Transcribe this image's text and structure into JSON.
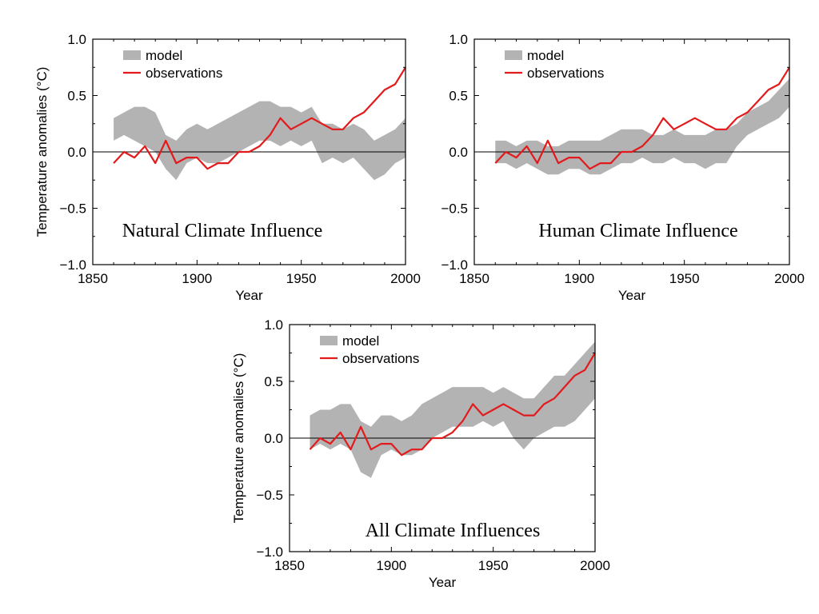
{
  "figure": {
    "legend": {
      "model_label": "model",
      "observations_label": "observations"
    },
    "colors": {
      "model": "#b3b3b3",
      "observations": "#e31a1c",
      "axis": "#000000"
    }
  },
  "chart_data": [
    {
      "type": "line",
      "title": "Natural Climate Influence",
      "xlabel": "Year",
      "ylabel": "Temperature anomalies (°C)",
      "xlim": [
        1850,
        2000
      ],
      "ylim": [
        -1.0,
        1.0
      ],
      "xticks": [
        "1850",
        "1900",
        "1950",
        "2000"
      ],
      "yticks": [
        "−1.0",
        "−0.5",
        "0.0",
        "0.5",
        "1.0"
      ],
      "legend_position": "top-left",
      "grid": false,
      "x": [
        1860,
        1865,
        1870,
        1875,
        1880,
        1885,
        1890,
        1895,
        1900,
        1905,
        1910,
        1915,
        1920,
        1925,
        1930,
        1935,
        1940,
        1945,
        1950,
        1955,
        1960,
        1965,
        1970,
        1975,
        1980,
        1985,
        1990,
        1995,
        2000
      ],
      "series": [
        {
          "name": "model",
          "kind": "band",
          "lower": [
            0.1,
            0.15,
            0.1,
            0.05,
            0.0,
            -0.15,
            -0.25,
            -0.1,
            -0.05,
            -0.1,
            -0.1,
            -0.05,
            0.0,
            0.05,
            0.1,
            0.1,
            0.05,
            0.1,
            0.05,
            0.1,
            -0.1,
            -0.05,
            -0.1,
            -0.05,
            -0.15,
            -0.25,
            -0.2,
            -0.1,
            -0.05
          ],
          "upper": [
            0.3,
            0.35,
            0.4,
            0.4,
            0.35,
            0.15,
            0.1,
            0.2,
            0.25,
            0.2,
            0.25,
            0.3,
            0.35,
            0.4,
            0.45,
            0.45,
            0.4,
            0.4,
            0.35,
            0.4,
            0.25,
            0.25,
            0.2,
            0.25,
            0.2,
            0.1,
            0.15,
            0.2,
            0.3
          ]
        },
        {
          "name": "observations",
          "kind": "line",
          "values": [
            -0.1,
            0.0,
            -0.05,
            0.05,
            -0.1,
            0.1,
            -0.1,
            -0.05,
            -0.05,
            -0.15,
            -0.1,
            -0.1,
            0.0,
            0.0,
            0.05,
            0.15,
            0.3,
            0.2,
            0.25,
            0.3,
            0.25,
            0.2,
            0.2,
            0.3,
            0.35,
            0.45,
            0.55,
            0.6,
            0.75
          ]
        }
      ]
    },
    {
      "type": "line",
      "title": "Human Climate Influence",
      "xlabel": "Year",
      "ylabel": "",
      "xlim": [
        1850,
        2000
      ],
      "ylim": [
        -1.0,
        1.0
      ],
      "xticks": [
        "1850",
        "1900",
        "1950",
        "2000"
      ],
      "yticks": [
        "−1.0",
        "−0.5",
        "0.0",
        "0.5",
        "1.0"
      ],
      "legend_position": "top-left",
      "grid": false,
      "x": [
        1860,
        1865,
        1870,
        1875,
        1880,
        1885,
        1890,
        1895,
        1900,
        1905,
        1910,
        1915,
        1920,
        1925,
        1930,
        1935,
        1940,
        1945,
        1950,
        1955,
        1960,
        1965,
        1970,
        1975,
        1980,
        1985,
        1990,
        1995,
        2000
      ],
      "series": [
        {
          "name": "model",
          "kind": "band",
          "lower": [
            -0.1,
            -0.1,
            -0.15,
            -0.1,
            -0.15,
            -0.2,
            -0.2,
            -0.15,
            -0.15,
            -0.2,
            -0.2,
            -0.15,
            -0.1,
            -0.1,
            -0.05,
            -0.1,
            -0.1,
            -0.05,
            -0.1,
            -0.1,
            -0.15,
            -0.1,
            -0.1,
            0.05,
            0.15,
            0.2,
            0.25,
            0.3,
            0.4
          ],
          "upper": [
            0.1,
            0.1,
            0.05,
            0.1,
            0.1,
            0.05,
            0.05,
            0.1,
            0.1,
            0.1,
            0.1,
            0.15,
            0.2,
            0.2,
            0.2,
            0.15,
            0.15,
            0.2,
            0.15,
            0.15,
            0.15,
            0.2,
            0.2,
            0.25,
            0.35,
            0.4,
            0.45,
            0.55,
            0.65
          ]
        },
        {
          "name": "observations",
          "kind": "line",
          "values": [
            -0.1,
            0.0,
            -0.05,
            0.05,
            -0.1,
            0.1,
            -0.1,
            -0.05,
            -0.05,
            -0.15,
            -0.1,
            -0.1,
            0.0,
            0.0,
            0.05,
            0.15,
            0.3,
            0.2,
            0.25,
            0.3,
            0.25,
            0.2,
            0.2,
            0.3,
            0.35,
            0.45,
            0.55,
            0.6,
            0.75
          ]
        }
      ]
    },
    {
      "type": "line",
      "title": "All Climate Influences",
      "xlabel": "Year",
      "ylabel": "Temperature anomalies (°C)",
      "xlim": [
        1850,
        2000
      ],
      "ylim": [
        -1.0,
        1.0
      ],
      "xticks": [
        "1850",
        "1900",
        "1950",
        "2000"
      ],
      "yticks": [
        "−1.0",
        "−0.5",
        "0.0",
        "0.5",
        "1.0"
      ],
      "legend_position": "top-left",
      "grid": false,
      "x": [
        1860,
        1865,
        1870,
        1875,
        1880,
        1885,
        1890,
        1895,
        1900,
        1905,
        1910,
        1915,
        1920,
        1925,
        1930,
        1935,
        1940,
        1945,
        1950,
        1955,
        1960,
        1965,
        1970,
        1975,
        1980,
        1985,
        1990,
        1995,
        2000
      ],
      "series": [
        {
          "name": "model",
          "kind": "band",
          "lower": [
            -0.1,
            -0.05,
            -0.1,
            -0.05,
            -0.1,
            -0.3,
            -0.35,
            -0.15,
            -0.1,
            -0.15,
            -0.15,
            -0.1,
            0.0,
            0.05,
            0.1,
            0.1,
            0.1,
            0.15,
            0.1,
            0.15,
            0.0,
            -0.1,
            0.0,
            0.05,
            0.1,
            0.1,
            0.15,
            0.25,
            0.35
          ],
          "upper": [
            0.2,
            0.25,
            0.25,
            0.3,
            0.3,
            0.15,
            0.1,
            0.2,
            0.2,
            0.15,
            0.2,
            0.3,
            0.35,
            0.4,
            0.45,
            0.45,
            0.45,
            0.45,
            0.4,
            0.45,
            0.4,
            0.35,
            0.35,
            0.45,
            0.55,
            0.55,
            0.65,
            0.75,
            0.85
          ]
        },
        {
          "name": "observations",
          "kind": "line",
          "values": [
            -0.1,
            0.0,
            -0.05,
            0.05,
            -0.1,
            0.1,
            -0.1,
            -0.05,
            -0.05,
            -0.15,
            -0.1,
            -0.1,
            0.0,
            0.0,
            0.05,
            0.15,
            0.3,
            0.2,
            0.25,
            0.3,
            0.25,
            0.2,
            0.2,
            0.3,
            0.35,
            0.45,
            0.55,
            0.6,
            0.75
          ]
        }
      ]
    }
  ]
}
